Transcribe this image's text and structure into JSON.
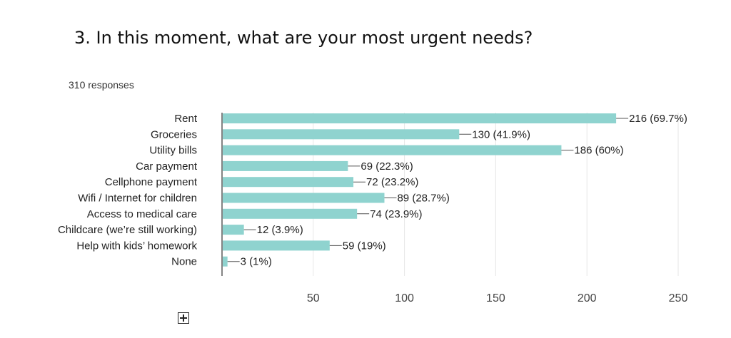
{
  "question": {
    "title": "3. In this moment, what are your most urgent needs?",
    "responses": "310 responses"
  },
  "colors": {
    "bar": "#8fd3cf",
    "axis": "#333333",
    "grid": "#e6e6e6",
    "text": "#222222"
  },
  "icons": {
    "expand": "expand-icon"
  },
  "chart_data": {
    "type": "bar",
    "orientation": "horizontal",
    "categories": [
      "Rent",
      "Groceries",
      "Utility bills",
      "Car payment",
      "Cellphone payment",
      "Wifi / Internet for children",
      "Access to medical care",
      "Childcare (we’re still working)",
      "Help with kids’ homework",
      "None"
    ],
    "values": [
      216,
      130,
      186,
      69,
      72,
      89,
      74,
      12,
      59,
      3
    ],
    "data_labels": [
      "216 (69.7%)",
      "130 (41.9%)",
      "186 (60%)",
      "69 (22.3%)",
      "72 (23.2%)",
      "89 (28.7%)",
      "74 (23.9%)",
      "12 (3.9%)",
      "59 (19%)",
      "3 (1%)"
    ],
    "xlim": [
      0,
      250
    ],
    "xticks": [
      50,
      100,
      150,
      200,
      250
    ],
    "grid": true
  }
}
